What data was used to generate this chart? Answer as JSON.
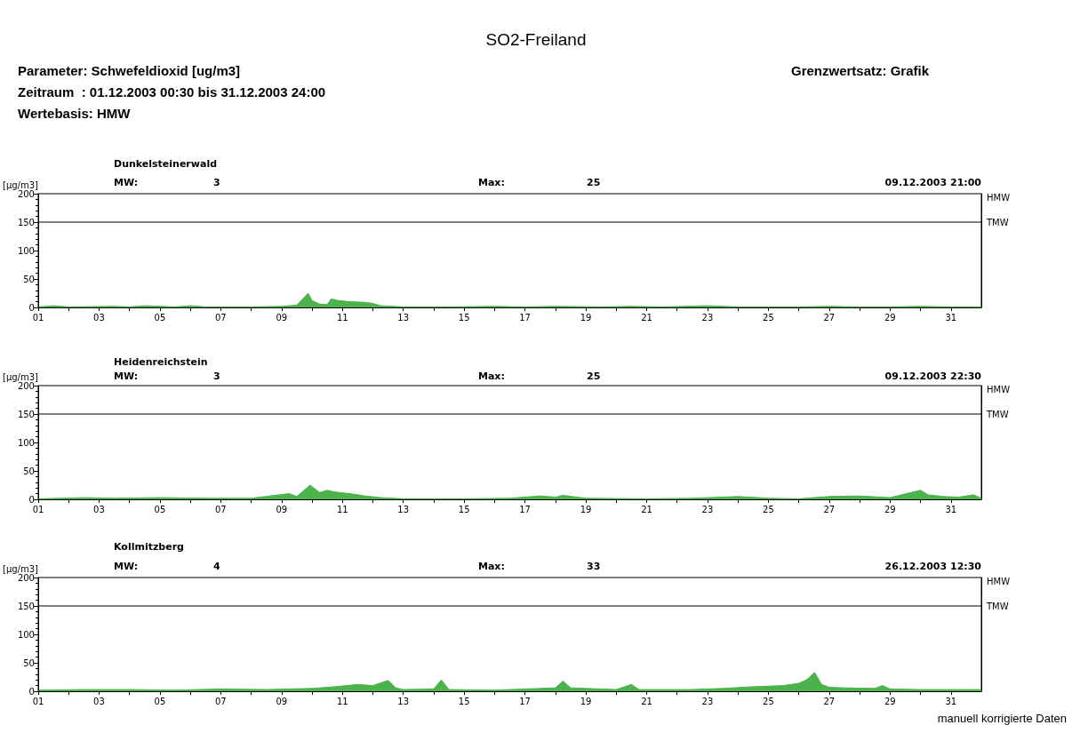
{
  "chart_data": [
    {
      "type": "area",
      "title": "SO2-Freiland",
      "subtitle": "Dunkelsteinerwald",
      "ylabel": "[µg/m3]",
      "annotations": [
        "HMW",
        "Parameter: Schwefeldioxid [ug/m3]",
        "Zeitraum  : 01.12.2003 00:30 bis 31.12.2003 24:00",
        "Wertebasis: HMW",
        "Grenzwertsatz: Grafik",
        "MW:",
        "3",
        "Max:",
        "25",
        "09.12.2003 21:00"
      ],
      "x": [
        "2003-12-01T00:30",
        "2003-12-01T12:00",
        "2003-12-02T00:00",
        "2003-12-03T12:00",
        "2003-12-04T00:00",
        "2003-12-04T12:00",
        "2003-12-05T12:00",
        "2003-12-06T00:00",
        "2003-12-06T12:00",
        "2003-12-08T00:00",
        "2003-12-09T00:00",
        "2003-12-09T12:00",
        "2003-12-09T21:00",
        "2003-12-10T00:00",
        "2003-12-10T06:00",
        "2003-12-10T12:00",
        "2003-12-10T15:00",
        "2003-12-10T21:00",
        "2003-12-11T06:00",
        "2003-12-11T18:00",
        "2003-12-12T00:00",
        "2003-12-12T06:00",
        "2003-12-13T00:00",
        "2003-12-14T12:00",
        "2003-12-16T00:00",
        "2003-12-17T00:00",
        "2003-12-18T00:00",
        "2003-12-19T12:00",
        "2003-12-20T12:00",
        "2003-12-21T12:00",
        "2003-12-23T00:00",
        "2003-12-24T00:00",
        "2003-12-25T00:00",
        "2003-12-26T00:00",
        "2003-12-27T00:00",
        "2003-12-28T00:00",
        "2003-12-29T00:00",
        "2003-12-30T00:00",
        "2003-12-31T00:00",
        "2004-01-01T00:00"
      ],
      "series": [
        {
          "color": "#4cb34c",
          "values": [
            1,
            3,
            1,
            2,
            1,
            3,
            1,
            3,
            1,
            1,
            2,
            4,
            25,
            12,
            6,
            5,
            15,
            12,
            10,
            9,
            7,
            3,
            1,
            1,
            2,
            1,
            2,
            1,
            2,
            1,
            3,
            1,
            1,
            1,
            2,
            1,
            1,
            2,
            1,
            1
          ]
        }
      ],
      "xlim": [
        "2003-12-01T00:00",
        "2004-01-01T00:00"
      ],
      "xticks": [
        {
          "value": "2003-12-01T00:00",
          "label": "01"
        },
        {
          "value": "2003-12-02T00:00",
          "label": null
        },
        {
          "value": "2003-12-03T00:00",
          "label": "03"
        },
        {
          "value": "2003-12-04T00:00",
          "label": null
        },
        {
          "value": "2003-12-05T00:00",
          "label": "05"
        },
        {
          "value": "2003-12-06T00:00",
          "label": null
        },
        {
          "value": "2003-12-07T00:00",
          "label": "07"
        },
        {
          "value": "2003-12-08T00:00",
          "label": null
        },
        {
          "value": "2003-12-09T00:00",
          "label": "09"
        },
        {
          "value": "2003-12-10T00:00",
          "label": null
        },
        {
          "value": "2003-12-11T00:00",
          "label": "11"
        },
        {
          "value": "2003-12-12T00:00",
          "label": null
        },
        {
          "value": "2003-12-13T00:00",
          "label": "13"
        },
        {
          "value": "2003-12-14T00:00",
          "label": null
        },
        {
          "value": "2003-12-15T00:00",
          "label": "15"
        },
        {
          "value": "2003-12-16T00:00",
          "label": null
        },
        {
          "value": "2003-12-17T00:00",
          "label": "17"
        },
        {
          "value": "2003-12-18T00:00",
          "label": null
        },
        {
          "value": "2003-12-19T00:00",
          "label": "19"
        },
        {
          "value": "2003-12-20T00:00",
          "label": null
        },
        {
          "value": "2003-12-21T00:00",
          "label": "21"
        },
        {
          "value": "2003-12-22T00:00",
          "label": null
        },
        {
          "value": "2003-12-23T00:00",
          "label": "23"
        },
        {
          "value": "2003-12-24T00:00",
          "label": null
        },
        {
          "value": "2003-12-25T00:00",
          "label": "25"
        },
        {
          "value": "2003-12-26T00:00",
          "label": null
        },
        {
          "value": "2003-12-27T00:00",
          "label": "27"
        },
        {
          "value": "2003-12-28T00:00",
          "label": null
        },
        {
          "value": "2003-12-29T00:00",
          "label": "29"
        },
        {
          "value": "2003-12-30T00:00",
          "label": null
        },
        {
          "value": "2003-12-31T00:00",
          "label": "31"
        }
      ],
      "ylim": [
        0,
        200
      ],
      "yticks": [
        0,
        50,
        100,
        150,
        200
      ],
      "grid": false,
      "marker": "none",
      "ref_lines": [
        {
          "axis": "y",
          "value": 150,
          "label": "TMW",
          "color": "#000000"
        }
      ]
    },
    {
      "type": "area",
      "subtitle": "Heidenreichstein",
      "ylabel": "[µg/m3]",
      "annotations": [
        "HMW",
        "MW:",
        "3",
        "Max:",
        "25",
        "09.12.2003 22:30"
      ],
      "x": [
        "2003-12-01T00:30",
        "2003-12-02T12:00",
        "2003-12-03T12:00",
        "2003-12-05T00:00",
        "2003-12-06T12:00",
        "2003-12-08T00:00",
        "2003-12-09T06:00",
        "2003-12-09T12:00",
        "2003-12-09T22:30",
        "2003-12-10T06:00",
        "2003-12-10T12:00",
        "2003-12-10T18:00",
        "2003-12-11T06:00",
        "2003-12-11T18:00",
        "2003-12-12T06:00",
        "2003-12-13T00:00",
        "2003-12-15T00:00",
        "2003-12-16T12:00",
        "2003-12-17T12:00",
        "2003-12-18T00:00",
        "2003-12-18T06:00",
        "2003-12-19T00:00",
        "2003-12-21T00:00",
        "2003-12-22T12:00",
        "2003-12-23T12:00",
        "2003-12-24T00:00",
        "2003-12-25T00:00",
        "2003-12-26T00:00",
        "2003-12-27T00:00",
        "2003-12-28T00:00",
        "2003-12-29T00:00",
        "2003-12-30T00:00",
        "2003-12-30T06:00",
        "2003-12-30T18:00",
        "2003-12-31T06:00",
        "2003-12-31T18:00",
        "2004-01-01T00:00"
      ],
      "series": [
        {
          "color": "#4cb34c",
          "values": [
            1,
            3,
            2,
            3,
            2,
            2,
            10,
            5,
            25,
            12,
            16,
            13,
            10,
            6,
            3,
            1,
            1,
            2,
            6,
            4,
            7,
            2,
            1,
            2,
            4,
            5,
            2,
            1,
            5,
            6,
            3,
            16,
            8,
            5,
            4,
            8,
            2
          ]
        }
      ],
      "xlim": [
        "2003-12-01T00:00",
        "2004-01-01T00:00"
      ],
      "xticks": [
        {
          "value": "2003-12-01T00:00",
          "label": "01"
        },
        {
          "value": "2003-12-02T00:00",
          "label": null
        },
        {
          "value": "2003-12-03T00:00",
          "label": "03"
        },
        {
          "value": "2003-12-04T00:00",
          "label": null
        },
        {
          "value": "2003-12-05T00:00",
          "label": "05"
        },
        {
          "value": "2003-12-06T00:00",
          "label": null
        },
        {
          "value": "2003-12-07T00:00",
          "label": "07"
        },
        {
          "value": "2003-12-08T00:00",
          "label": null
        },
        {
          "value": "2003-12-09T00:00",
          "label": "09"
        },
        {
          "value": "2003-12-10T00:00",
          "label": null
        },
        {
          "value": "2003-12-11T00:00",
          "label": "11"
        },
        {
          "value": "2003-12-12T00:00",
          "label": null
        },
        {
          "value": "2003-12-13T00:00",
          "label": "13"
        },
        {
          "value": "2003-12-14T00:00",
          "label": null
        },
        {
          "value": "2003-12-15T00:00",
          "label": "15"
        },
        {
          "value": "2003-12-16T00:00",
          "label": null
        },
        {
          "value": "2003-12-17T00:00",
          "label": "17"
        },
        {
          "value": "2003-12-18T00:00",
          "label": null
        },
        {
          "value": "2003-12-19T00:00",
          "label": "19"
        },
        {
          "value": "2003-12-20T00:00",
          "label": null
        },
        {
          "value": "2003-12-21T00:00",
          "label": "21"
        },
        {
          "value": "2003-12-22T00:00",
          "label": null
        },
        {
          "value": "2003-12-23T00:00",
          "label": "23"
        },
        {
          "value": "2003-12-24T00:00",
          "label": null
        },
        {
          "value": "2003-12-25T00:00",
          "label": "25"
        },
        {
          "value": "2003-12-26T00:00",
          "label": null
        },
        {
          "value": "2003-12-27T00:00",
          "label": "27"
        },
        {
          "value": "2003-12-28T00:00",
          "label": null
        },
        {
          "value": "2003-12-29T00:00",
          "label": "29"
        },
        {
          "value": "2003-12-30T00:00",
          "label": null
        },
        {
          "value": "2003-12-31T00:00",
          "label": "31"
        }
      ],
      "ylim": [
        0,
        200
      ],
      "yticks": [
        0,
        50,
        100,
        150,
        200
      ],
      "grid": false,
      "marker": "none",
      "ref_lines": [
        {
          "axis": "y",
          "value": 150,
          "label": "TMW",
          "color": "#000000"
        }
      ]
    },
    {
      "type": "area",
      "subtitle": "Kollmitzberg",
      "ylabel": "[µg/m3]",
      "annotations": [
        "HMW",
        "manuell korrigierte Daten",
        "MW:",
        "4",
        "Max:",
        "33",
        "26.12.2003 12:30"
      ],
      "x": [
        "2003-12-01T00:30",
        "2003-12-02T12:00",
        "2003-12-04T00:00",
        "2003-12-05T12:00",
        "2003-12-07T00:00",
        "2003-12-08T12:00",
        "2003-12-10T00:00",
        "2003-12-10T18:00",
        "2003-12-11T12:00",
        "2003-12-12T00:00",
        "2003-12-12T12:00",
        "2003-12-12T18:00",
        "2003-12-13T00:00",
        "2003-12-14T00:00",
        "2003-12-14T06:00",
        "2003-12-14T12:00",
        "2003-12-16T00:00",
        "2003-12-18T00:00",
        "2003-12-18T06:00",
        "2003-12-18T12:00",
        "2003-12-20T00:00",
        "2003-12-20T12:00",
        "2003-12-20T18:00",
        "2003-12-22T12:00",
        "2003-12-23T12:00",
        "2003-12-24T12:00",
        "2003-12-25T12:00",
        "2003-12-26T00:00",
        "2003-12-26T06:00",
        "2003-12-26T12:30",
        "2003-12-26T18:00",
        "2003-12-27T00:00",
        "2003-12-27T12:00",
        "2003-12-28T12:00",
        "2003-12-28T18:00",
        "2003-12-29T00:00",
        "2003-12-30T00:00",
        "2003-12-31T00:00",
        "2004-01-01T00:00"
      ],
      "series": [
        {
          "color": "#4cb34c",
          "values": [
            2,
            3,
            3,
            2,
            4,
            3,
            5,
            8,
            12,
            10,
            19,
            6,
            3,
            4,
            20,
            3,
            2,
            6,
            18,
            6,
            3,
            12,
            3,
            3,
            5,
            8,
            10,
            14,
            20,
            33,
            12,
            7,
            6,
            5,
            10,
            4,
            3,
            3,
            3
          ]
        }
      ],
      "xlim": [
        "2003-12-01T00:00",
        "2004-01-01T00:00"
      ],
      "xticks": [
        {
          "value": "2003-12-01T00:00",
          "label": "01"
        },
        {
          "value": "2003-12-02T00:00",
          "label": null
        },
        {
          "value": "2003-12-03T00:00",
          "label": "03"
        },
        {
          "value": "2003-12-04T00:00",
          "label": null
        },
        {
          "value": "2003-12-05T00:00",
          "label": "05"
        },
        {
          "value": "2003-12-06T00:00",
          "label": null
        },
        {
          "value": "2003-12-07T00:00",
          "label": "07"
        },
        {
          "value": "2003-12-08T00:00",
          "label": null
        },
        {
          "value": "2003-12-09T00:00",
          "label": "09"
        },
        {
          "value": "2003-12-10T00:00",
          "label": null
        },
        {
          "value": "2003-12-11T00:00",
          "label": "11"
        },
        {
          "value": "2003-12-12T00:00",
          "label": null
        },
        {
          "value": "2003-12-13T00:00",
          "label": "13"
        },
        {
          "value": "2003-12-14T00:00",
          "label": null
        },
        {
          "value": "2003-12-15T00:00",
          "label": "15"
        },
        {
          "value": "2003-12-16T00:00",
          "label": null
        },
        {
          "value": "2003-12-17T00:00",
          "label": "17"
        },
        {
          "value": "2003-12-18T00:00",
          "label": null
        },
        {
          "value": "2003-12-19T00:00",
          "label": "19"
        },
        {
          "value": "2003-12-20T00:00",
          "label": null
        },
        {
          "value": "2003-12-21T00:00",
          "label": "21"
        },
        {
          "value": "2003-12-22T00:00",
          "label": null
        },
        {
          "value": "2003-12-23T00:00",
          "label": "23"
        },
        {
          "value": "2003-12-24T00:00",
          "label": null
        },
        {
          "value": "2003-12-25T00:00",
          "label": "25"
        },
        {
          "value": "2003-12-26T00:00",
          "label": null
        },
        {
          "value": "2003-12-27T00:00",
          "label": "27"
        },
        {
          "value": "2003-12-28T00:00",
          "label": null
        },
        {
          "value": "2003-12-29T00:00",
          "label": "29"
        },
        {
          "value": "2003-12-30T00:00",
          "label": null
        },
        {
          "value": "2003-12-31T00:00",
          "label": "31"
        }
      ],
      "ylim": [
        0,
        200
      ],
      "yticks": [
        0,
        50,
        100,
        150,
        200
      ],
      "grid": false,
      "marker": "none",
      "ref_lines": [
        {
          "axis": "y",
          "value": 150,
          "label": "TMW",
          "color": "#000000"
        }
      ]
    }
  ]
}
